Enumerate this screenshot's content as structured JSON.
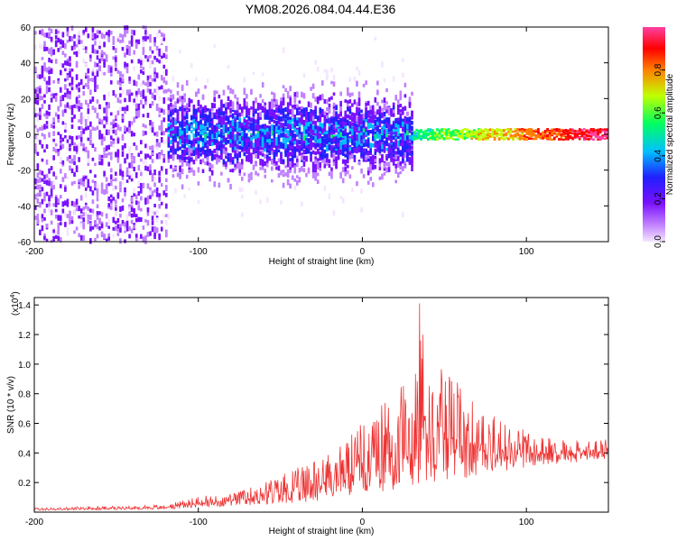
{
  "title": "YM08.2026.084.04.44.E36",
  "colors": {
    "series_color": "#ee3333",
    "colormap": [
      "#f4e6ff",
      "#c080ff",
      "#7a10ff",
      "#2020ff",
      "#00c0ff",
      "#00ff60",
      "#c0ff00",
      "#ff8000",
      "#ff0000",
      "#ff40a0"
    ]
  },
  "chart_data": [
    {
      "type": "heatmap",
      "title": "YM08.2026.084.04.44.E36",
      "xlabel": "Height of straight line (km)",
      "ylabel": "Frequency (Hz)",
      "xlim": [
        -200,
        150
      ],
      "ylim": [
        -60,
        60
      ],
      "xticks": [
        "-200",
        "-100",
        "0",
        "100"
      ],
      "yticks": [
        "60",
        "40",
        "20",
        "0",
        "-20",
        "-40",
        "-60"
      ],
      "colorbar": {
        "label": "Normalized spectral amplitude",
        "range": [
          0,
          1
        ],
        "ticks": [
          "0.0",
          "0.2",
          "0.4",
          "0.6",
          "0.8"
        ]
      },
      "regions": [
        {
          "x_range": [
            -200,
            -120
          ],
          "frequency_range": [
            -60,
            60
          ],
          "amplitude": "low, scattered"
        },
        {
          "x_range": [
            -120,
            30
          ],
          "frequency_range": [
            -30,
            30
          ],
          "amplitude": "low to moderate, centered near 0 Hz"
        },
        {
          "x_range": [
            30,
            150
          ],
          "frequency_range": [
            -3,
            3
          ],
          "amplitude": "high, narrow band at 0 Hz"
        }
      ]
    },
    {
      "type": "line",
      "xlabel": "Height of straight line (km)",
      "ylabel": "SNR (10 * v/v)",
      "yscale_label": "(x10",
      "yscale_exp": "4",
      "yscale_close": ")",
      "xlim": [
        -200,
        150
      ],
      "ylim": [
        0,
        1.45
      ],
      "xticks": [
        "-200",
        "-100",
        "0",
        "100"
      ],
      "yticks": [
        "0.2",
        "0.4",
        "0.6",
        "0.8",
        "1.0",
        "1.2",
        "1.4"
      ],
      "series": [
        {
          "name": "SNR",
          "envelope_x": [
            -200,
            -150,
            -120,
            -100,
            -80,
            -60,
            -40,
            -20,
            0,
            10,
            20,
            30,
            35,
            40,
            50,
            60,
            70,
            80,
            100,
            120,
            140,
            150
          ],
          "envelope_y": [
            0.03,
            0.04,
            0.05,
            0.11,
            0.12,
            0.2,
            0.3,
            0.4,
            0.6,
            0.7,
            0.85,
            0.9,
            1.45,
            0.95,
            1.0,
            0.85,
            0.75,
            0.65,
            0.55,
            0.5,
            0.48,
            0.5
          ],
          "baseline_x": [
            -200,
            -120,
            -100,
            -60,
            -20,
            0,
            20,
            40,
            60,
            80,
            100,
            120,
            150
          ],
          "baseline_y": [
            0.01,
            0.02,
            0.03,
            0.05,
            0.08,
            0.12,
            0.15,
            0.2,
            0.22,
            0.25,
            0.3,
            0.33,
            0.35
          ]
        }
      ]
    }
  ]
}
